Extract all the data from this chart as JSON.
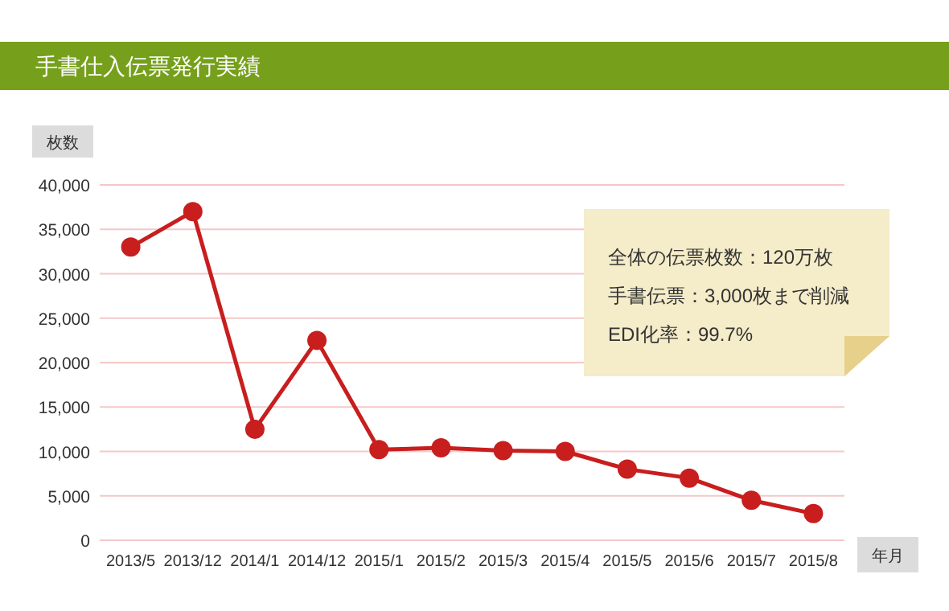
{
  "chart_data": {
    "type": "line",
    "title": "手書仕入伝票発行実績",
    "ylabel": "枚数",
    "xlabel": "年月",
    "categories": [
      "2013/5",
      "2013/12",
      "2014/1",
      "2014/12",
      "2015/1",
      "2015/2",
      "2015/3",
      "2015/4",
      "2015/5",
      "2015/6",
      "2015/7",
      "2015/8"
    ],
    "series": [
      {
        "color": "#c81e1e",
        "values": [
          33000,
          37000,
          12500,
          22500,
          10200,
          10400,
          10100,
          10000,
          8000,
          7000,
          4500,
          3000
        ]
      }
    ],
    "ylim": [
      0,
      40000
    ],
    "yticks": [
      0,
      {
        "value": 5000,
        "label": "5,000"
      },
      {
        "value": 10000,
        "label": "10,000"
      },
      {
        "value": 15000,
        "label": "15,000"
      },
      {
        "value": 20000,
        "label": "20,000"
      },
      {
        "value": 25000,
        "label": "25,000"
      },
      {
        "value": 30000,
        "label": "30,000"
      },
      {
        "value": 35000,
        "label": "35,000"
      },
      {
        "value": 40000,
        "label": "40,000"
      }
    ],
    "grid": "y",
    "marker": "circle",
    "line_style": "solid",
    "annotations": [
      "全体の伝票枚数：120万枚",
      "手書伝票：3,000枚まで削減",
      "EDI化率：99.7%"
    ]
  }
}
